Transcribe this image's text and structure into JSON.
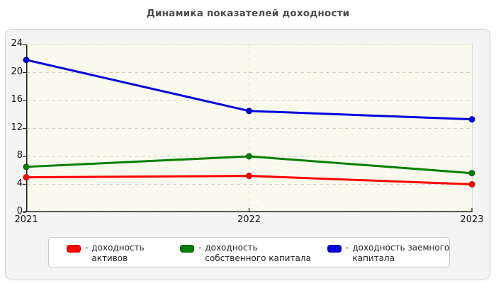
{
  "chart_data": {
    "type": "line",
    "title": "Динамика показателей доходности",
    "categories": [
      "2021",
      "2022",
      "2023"
    ],
    "series": [
      {
        "name": "доходность активов",
        "values": [
          5.0,
          5.2,
          4.0
        ],
        "color": "#ff0000",
        "marker_border": "#c00000"
      },
      {
        "name": "доходность собственного капитала",
        "values": [
          6.5,
          8.0,
          5.6
        ],
        "color": "#008000",
        "marker_border": "#005300"
      },
      {
        "name": "доходность заемного капитала",
        "values": [
          21.8,
          14.5,
          13.3
        ],
        "color": "#0000dd",
        "marker_border": "#000099"
      }
    ],
    "xlabel": "",
    "ylabel": "",
    "ylim": [
      0,
      24
    ],
    "yticks": [
      0,
      4,
      8,
      12,
      16,
      20,
      24
    ],
    "grid": "horizontal dashed at yticks, vertical dashed at middle category",
    "legend_position": "bottom"
  },
  "legend": {
    "separator": "-",
    "items": [
      {
        "label": "доходность активов",
        "color": "#ff0000",
        "border": "#c00000"
      },
      {
        "label": "доходность собственного капитала",
        "color": "#008000",
        "border": "#005300"
      },
      {
        "label": "доходность заемного капитала",
        "color": "#0000dd",
        "border": "#000099"
      }
    ]
  }
}
